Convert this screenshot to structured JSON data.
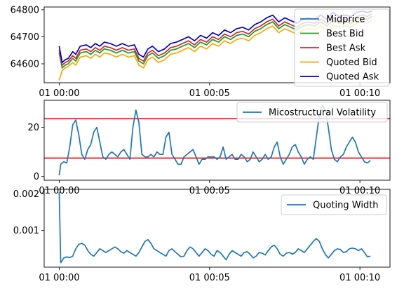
{
  "chart_data": [
    {
      "type": "line",
      "x_ticks": [
        "01 00:00",
        "01 00:05",
        "01 00:10"
      ],
      "x_tick_minutes": [
        0,
        5,
        10
      ],
      "xlim_minutes": [
        -0.5,
        11.0
      ],
      "ylim": [
        64530,
        64810
      ],
      "y_ticks": [
        64600,
        64700,
        64800
      ],
      "legend_position": "top-right",
      "x_minutes": [
        0.0,
        0.1,
        0.2,
        0.3,
        0.45,
        0.55,
        0.7,
        0.9,
        1.05,
        1.2,
        1.35,
        1.5,
        1.7,
        1.9,
        2.1,
        2.3,
        2.5,
        2.65,
        2.8,
        2.95,
        3.1,
        3.3,
        3.5,
        3.7,
        3.9,
        4.1,
        4.3,
        4.5,
        4.7,
        4.9,
        5.1,
        5.3,
        5.5,
        5.7,
        5.9,
        6.1,
        6.3,
        6.5,
        6.7,
        6.9,
        7.1,
        7.3,
        7.5,
        7.7,
        7.9,
        8.1,
        8.3,
        8.5,
        8.7,
        8.9,
        9.1,
        9.3,
        9.5,
        9.7,
        9.9,
        10.1,
        10.25,
        10.4
      ],
      "series": [
        {
          "name": "Midprice",
          "color": "#1f77b4",
          "values": [
            64640,
            64585,
            64595,
            64600,
            64620,
            64610,
            64640,
            64645,
            64635,
            64650,
            64640,
            64655,
            64650,
            64640,
            64650,
            64640,
            64645,
            64610,
            64600,
            64630,
            64640,
            64620,
            64630,
            64650,
            64655,
            64665,
            64675,
            64660,
            64680,
            64670,
            64690,
            64680,
            64700,
            64690,
            64705,
            64710,
            64700,
            64720,
            64730,
            64745,
            64755,
            64730,
            64745,
            64735,
            64725,
            64740,
            64745,
            64740,
            64755,
            64740,
            64760,
            64750,
            64755,
            64750,
            64765,
            64770,
            64765,
            64775
          ]
        },
        {
          "name": "Best Bid",
          "color": "#2ca02c",
          "values": [
            64640,
            64585,
            64595,
            64600,
            64620,
            64610,
            64640,
            64645,
            64635,
            64650,
            64640,
            64655,
            64650,
            64640,
            64650,
            64640,
            64645,
            64610,
            64600,
            64630,
            64640,
            64620,
            64630,
            64650,
            64655,
            64665,
            64675,
            64660,
            64680,
            64670,
            64690,
            64680,
            64700,
            64690,
            64705,
            64710,
            64700,
            64720,
            64730,
            64745,
            64755,
            64730,
            64745,
            64735,
            64725,
            64740,
            64745,
            64740,
            64755,
            64740,
            64760,
            64750,
            64755,
            64750,
            64765,
            64770,
            64765,
            64775
          ]
        },
        {
          "name": "Best Ask",
          "color": "#d62728",
          "values": [
            64650,
            64595,
            64605,
            64610,
            64630,
            64620,
            64650,
            64655,
            64645,
            64660,
            64650,
            64665,
            64660,
            64650,
            64660,
            64650,
            64655,
            64620,
            64610,
            64640,
            64650,
            64630,
            64640,
            64660,
            64665,
            64675,
            64685,
            64670,
            64690,
            64680,
            64700,
            64690,
            64710,
            64700,
            64715,
            64720,
            64710,
            64730,
            64740,
            64755,
            64765,
            64740,
            64755,
            64745,
            64735,
            64750,
            64755,
            64750,
            64765,
            64750,
            64770,
            64760,
            64765,
            64760,
            64775,
            64780,
            64775,
            64785
          ]
        },
        {
          "name": "Quoted Bid",
          "color": "#ffa500",
          "values": [
            64540,
            64575,
            64585,
            64590,
            64605,
            64595,
            64625,
            64630,
            64620,
            64635,
            64625,
            64640,
            64635,
            64625,
            64635,
            64625,
            64630,
            64595,
            64585,
            64615,
            64625,
            64605,
            64615,
            64635,
            64640,
            64650,
            64660,
            64645,
            64665,
            64655,
            64675,
            64665,
            64685,
            64675,
            64690,
            64695,
            64685,
            64705,
            64715,
            64730,
            64740,
            64715,
            64730,
            64720,
            64710,
            64725,
            64730,
            64725,
            64740,
            64725,
            64745,
            64735,
            64740,
            64735,
            64750,
            64755,
            64750,
            64760
          ]
        },
        {
          "name": "Quoted Ask",
          "color": "#0000cd",
          "values": [
            64665,
            64605,
            64615,
            64620,
            64645,
            64635,
            64665,
            64670,
            64660,
            64675,
            64665,
            64680,
            64675,
            64665,
            64675,
            64665,
            64670,
            64635,
            64625,
            64655,
            64665,
            64645,
            64655,
            64675,
            64680,
            64690,
            64700,
            64685,
            64705,
            64695,
            64715,
            64705,
            64725,
            64715,
            64730,
            64735,
            64725,
            64745,
            64755,
            64770,
            64780,
            64755,
            64770,
            64760,
            64750,
            64765,
            64770,
            64765,
            64780,
            64765,
            64790,
            64775,
            64780,
            64775,
            64790,
            64795,
            64790,
            64795
          ]
        }
      ]
    },
    {
      "type": "line",
      "x_ticks": [
        "01 00:00",
        "01 00:05",
        "01 00:10"
      ],
      "x_tick_minutes": [
        0,
        5,
        10
      ],
      "xlim_minutes": [
        -0.5,
        11.0
      ],
      "ylim": [
        -1.5,
        31
      ],
      "y_ticks": [
        0,
        20
      ],
      "y_tick_labels": [
        "0",
        "20"
      ],
      "legend_position": "top-right",
      "hlines": [
        {
          "y": 23.5,
          "color": "#ff0000"
        },
        {
          "y": 7.5,
          "color": "#ff0000"
        }
      ],
      "x_minutes": [
        0.0,
        0.05,
        0.15,
        0.25,
        0.35,
        0.45,
        0.55,
        0.65,
        0.75,
        0.85,
        0.95,
        1.05,
        1.15,
        1.25,
        1.35,
        1.45,
        1.55,
        1.65,
        1.75,
        1.85,
        1.95,
        2.05,
        2.15,
        2.25,
        2.35,
        2.45,
        2.55,
        2.65,
        2.75,
        2.85,
        2.95,
        3.05,
        3.15,
        3.25,
        3.35,
        3.45,
        3.55,
        3.65,
        3.75,
        3.85,
        3.95,
        4.05,
        4.15,
        4.25,
        4.35,
        4.45,
        4.55,
        4.65,
        4.75,
        4.85,
        4.95,
        5.05,
        5.15,
        5.25,
        5.35,
        5.45,
        5.55,
        5.65,
        5.75,
        5.85,
        5.95,
        6.05,
        6.15,
        6.25,
        6.35,
        6.45,
        6.55,
        6.65,
        6.75,
        6.85,
        6.95,
        7.05,
        7.15,
        7.25,
        7.35,
        7.45,
        7.55,
        7.65,
        7.75,
        7.85,
        7.95,
        8.05,
        8.15,
        8.25,
        8.35,
        8.45,
        8.55,
        8.65,
        8.75,
        8.85,
        8.95,
        9.05,
        9.15,
        9.25,
        9.35,
        9.45,
        9.55,
        9.65,
        9.75,
        9.85,
        9.95,
        10.05,
        10.15,
        10.25,
        10.35
      ],
      "series": [
        {
          "name": "Micostructural Volatility",
          "color": "#1f77b4",
          "values": [
            0.5,
            5,
            6,
            5.5,
            12,
            21,
            23,
            17,
            9,
            7,
            11,
            13,
            18,
            20,
            14,
            8,
            7,
            9,
            10,
            9,
            8,
            10,
            11,
            9,
            7,
            20,
            27,
            22,
            9,
            8,
            8,
            9,
            8,
            10,
            9,
            9,
            16,
            18,
            9,
            7,
            5,
            5,
            8,
            9,
            10,
            11,
            8,
            5,
            7,
            7,
            8,
            8,
            8,
            7,
            8,
            12,
            7,
            8,
            9,
            7,
            7,
            9,
            8,
            6,
            7,
            10,
            8,
            6,
            7,
            9,
            7,
            8,
            12,
            14,
            8,
            5,
            7,
            9,
            12,
            13,
            10,
            8,
            5,
            7,
            8,
            7,
            16,
            25,
            29,
            27,
            20,
            11,
            7,
            6,
            8,
            9,
            12,
            14,
            16,
            14,
            10,
            8,
            6,
            5.5,
            6.5
          ]
        }
      ]
    },
    {
      "type": "line",
      "x_ticks": [
        "01 00:00",
        "01 00:05",
        "01 00:10"
      ],
      "x_tick_minutes": [
        0,
        5,
        10
      ],
      "xlim_minutes": [
        -0.5,
        11.0
      ],
      "ylim": [
        0.0,
        0.00212
      ],
      "y_ticks": [
        0.001,
        0.002
      ],
      "y_tick_labels": [
        "0.001",
        "0.002"
      ],
      "legend_position": "top-right",
      "x_minutes": [
        0.0,
        0.05,
        0.15,
        0.25,
        0.35,
        0.45,
        0.55,
        0.65,
        0.75,
        0.85,
        0.95,
        1.05,
        1.15,
        1.25,
        1.35,
        1.45,
        1.55,
        1.65,
        1.75,
        1.85,
        1.95,
        2.05,
        2.15,
        2.25,
        2.35,
        2.45,
        2.55,
        2.65,
        2.75,
        2.85,
        2.95,
        3.05,
        3.15,
        3.25,
        3.35,
        3.45,
        3.55,
        3.65,
        3.75,
        3.85,
        3.95,
        4.05,
        4.15,
        4.25,
        4.35,
        4.45,
        4.55,
        4.65,
        4.75,
        4.85,
        4.95,
        5.05,
        5.15,
        5.25,
        5.35,
        5.45,
        5.55,
        5.65,
        5.75,
        5.85,
        5.95,
        6.05,
        6.15,
        6.25,
        6.35,
        6.45,
        6.55,
        6.65,
        6.75,
        6.85,
        6.95,
        7.05,
        7.15,
        7.25,
        7.35,
        7.45,
        7.55,
        7.65,
        7.75,
        7.85,
        7.95,
        8.05,
        8.15,
        8.25,
        8.35,
        8.45,
        8.55,
        8.65,
        8.75,
        8.85,
        8.95,
        9.05,
        9.15,
        9.25,
        9.35,
        9.45,
        9.55,
        9.65,
        9.75,
        9.85,
        9.95,
        10.05,
        10.15,
        10.25,
        10.35
      ],
      "series": [
        {
          "name": "Quoting Width",
          "color": "#1f77b4",
          "values": [
            0.00205,
            0.00012,
            0.00025,
            0.00028,
            0.00026,
            0.0003,
            0.0005,
            0.00062,
            0.00065,
            0.0006,
            0.00045,
            0.00035,
            0.0003,
            0.0004,
            0.0005,
            0.00045,
            0.0004,
            0.00045,
            0.0005,
            0.00055,
            0.0005,
            0.00042,
            0.00038,
            0.00045,
            0.0004,
            0.00035,
            0.0003,
            0.0004,
            0.00055,
            0.0007,
            0.00075,
            0.00065,
            0.0005,
            0.00045,
            0.0004,
            0.00035,
            0.0003,
            0.00045,
            0.0005,
            0.00042,
            0.00035,
            0.00028,
            0.0003,
            0.00045,
            0.00055,
            0.0005,
            0.0004,
            0.0003,
            0.0004,
            0.0005,
            0.00045,
            0.00035,
            0.0003,
            0.00045,
            0.0004,
            0.0003,
            0.0002,
            0.00035,
            0.00045,
            0.0004,
            0.00035,
            0.0003,
            0.0004,
            0.00042,
            0.00035,
            0.00025,
            0.0003,
            0.0004,
            0.00038,
            0.00033,
            0.00045,
            0.00055,
            0.0006,
            0.0005,
            0.00035,
            0.0003,
            0.00038,
            0.0004,
            0.00036,
            0.0004,
            0.0005,
            0.00045,
            0.0004,
            0.0005,
            0.0006,
            0.0007,
            0.00078,
            0.0007,
            0.0005,
            0.00035,
            0.00025,
            0.00035,
            0.00045,
            0.0005,
            0.00048,
            0.0004,
            0.00042,
            0.0005,
            0.00052,
            0.0005,
            0.00045,
            0.0005,
            0.0004,
            0.00028,
            0.0003
          ]
        }
      ]
    }
  ]
}
